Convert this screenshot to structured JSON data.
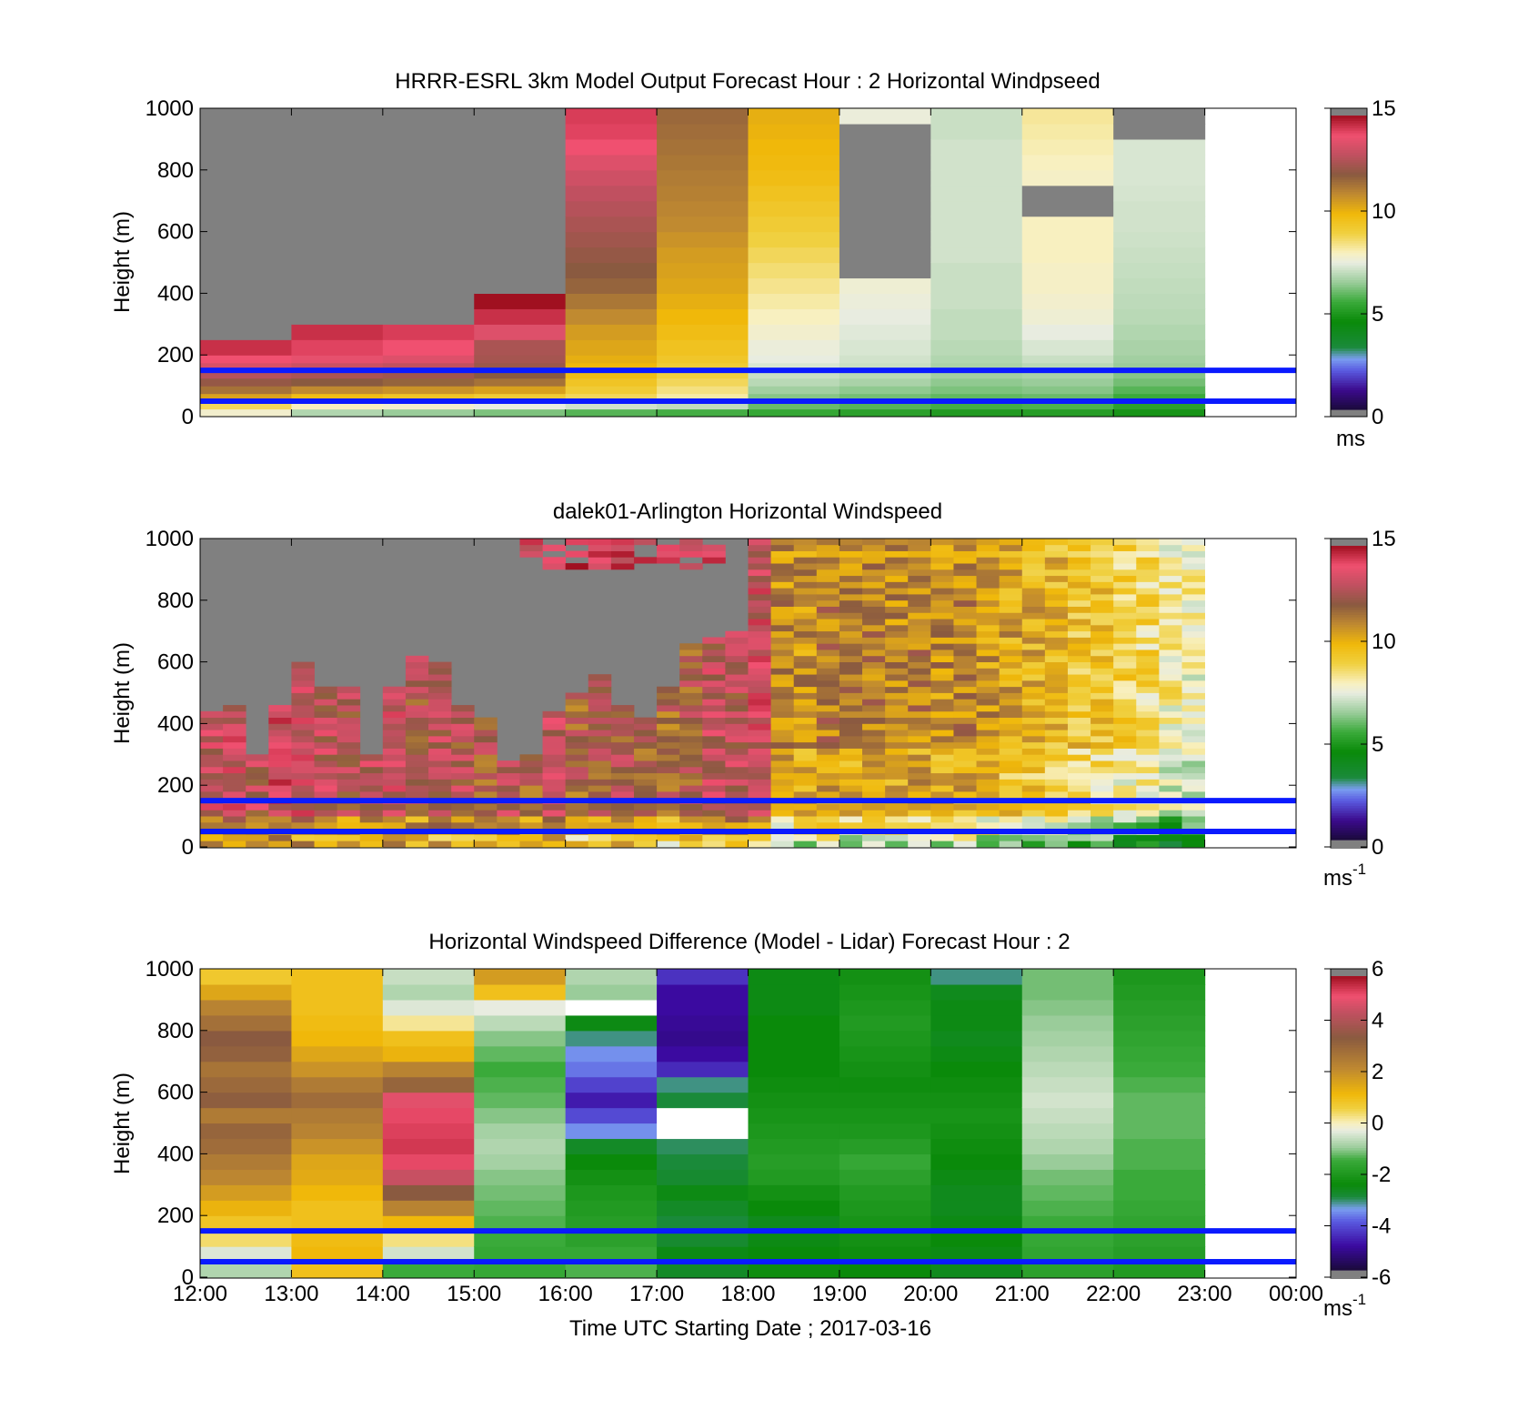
{
  "figure": {
    "xlabel": "Time UTC  Starting Date ; 2017-03-16",
    "x_ticks": [
      "12:00",
      "13:00",
      "14:00",
      "15:00",
      "16:00",
      "17:00",
      "18:00",
      "19:00",
      "20:00",
      "21:00",
      "22:00",
      "23:00",
      "00:00"
    ]
  },
  "colors": {
    "reference_lines": "#0a1aff",
    "missing": "#808080",
    "speed_cmap": [
      [
        0,
        "#1a0a3a"
      ],
      [
        1,
        "#3b0a8c"
      ],
      [
        2,
        "#5a5ae0"
      ],
      [
        2.6,
        "#7a9ef0"
      ],
      [
        3.2,
        "#1a8a3a"
      ],
      [
        4.5,
        "#0a8a0a"
      ],
      [
        5.5,
        "#3aaa3a"
      ],
      [
        6.5,
        "#9acc9a"
      ],
      [
        7.5,
        "#e8ece0"
      ],
      [
        8,
        "#f8f0c0"
      ],
      [
        9,
        "#f0d040"
      ],
      [
        10,
        "#f0b80a"
      ],
      [
        11,
        "#c08a30"
      ],
      [
        12,
        "#8a5a40"
      ],
      [
        13,
        "#c05060"
      ],
      [
        14,
        "#f05070"
      ],
      [
        15,
        "#a01020"
      ]
    ],
    "diff_cmap": [
      [
        -6,
        "#1a0a3a"
      ],
      [
        -5,
        "#3b0aa0"
      ],
      [
        -4,
        "#5a5ae0"
      ],
      [
        -3.5,
        "#7a9ef0"
      ],
      [
        -3,
        "#1a8a3a"
      ],
      [
        -2.5,
        "#0a8a0a"
      ],
      [
        -1.5,
        "#3aaa3a"
      ],
      [
        -1,
        "#9acc9a"
      ],
      [
        -0.3,
        "#e8ece0"
      ],
      [
        0,
        "#f8f0c0"
      ],
      [
        0.6,
        "#f0d040"
      ],
      [
        1.2,
        "#f0b80a"
      ],
      [
        2.2,
        "#c08a30"
      ],
      [
        3.5,
        "#8a5a40"
      ],
      [
        4.5,
        "#c05060"
      ],
      [
        5.2,
        "#f05070"
      ],
      [
        6,
        "#a01020"
      ]
    ]
  },
  "chart_data": [
    {
      "type": "heatmap",
      "title": "HRRR-ESRL 3km Model Output   Forecast Hour : 2 Horizontal Windpseed",
      "ylabel": "Height (m)",
      "y_ticks": [
        "0",
        "200",
        "400",
        "600",
        "800",
        "1000"
      ],
      "ylim": [
        0,
        1000
      ],
      "xlim": [
        12,
        24
      ],
      "colorbar": {
        "ticks": [
          "0",
          "5",
          "10",
          "15"
        ],
        "range": [
          0,
          15
        ],
        "unit_base": "ms",
        "unit_exp": ""
      },
      "reference_lines_m": [
        50,
        150
      ],
      "time_bins_h": [
        12,
        13,
        14,
        15,
        16,
        17,
        18,
        19,
        20,
        21,
        22,
        23
      ],
      "height_bins_m": [
        0,
        25,
        50,
        75,
        100,
        125,
        150,
        175,
        200,
        250,
        300,
        350,
        400,
        450,
        500,
        550,
        600,
        650,
        700,
        750,
        800,
        850,
        900,
        950,
        1000
      ],
      "values_ms": [
        [
          7.8,
          8.8,
          10.5,
          11.5,
          12.2,
          12.8,
          13.5,
          14,
          14.5,
          null,
          null,
          null,
          null,
          null,
          null,
          null,
          null,
          null,
          null,
          null,
          null,
          null,
          null,
          null
        ],
        [
          6.8,
          8,
          9.8,
          11,
          12,
          12.6,
          13.2,
          13.8,
          14.2,
          14.5,
          null,
          null,
          null,
          null,
          null,
          null,
          null,
          null,
          null,
          null,
          null,
          null,
          null,
          null
        ],
        [
          6.5,
          7.8,
          9.5,
          10.8,
          11.8,
          12.4,
          13,
          13.6,
          14,
          14.3,
          null,
          null,
          null,
          null,
          null,
          null,
          null,
          null,
          null,
          null,
          null,
          null,
          null,
          null
        ],
        [
          6.2,
          7.5,
          9.2,
          10.5,
          11.5,
          12,
          12.3,
          12.5,
          12.6,
          13.6,
          14.5,
          15,
          null,
          null,
          null,
          null,
          null,
          null,
          null,
          null,
          null,
          null,
          null,
          null
        ],
        [
          5.8,
          7.2,
          8.8,
          9.2,
          9.5,
          9.8,
          10,
          10.2,
          10.4,
          10.6,
          11,
          11.4,
          11.8,
          12,
          12.2,
          12.4,
          12.6,
          12.8,
          13,
          13.3,
          13.6,
          14,
          14.2,
          14.3
        ],
        [
          5.6,
          7,
          8.2,
          8.5,
          8.8,
          9,
          9.2,
          9.4,
          9.6,
          9.8,
          10,
          10.2,
          10.4,
          10.5,
          10.6,
          10.8,
          11,
          11.1,
          11.2,
          11.3,
          11.4,
          11.5,
          11.6,
          11.7
        ],
        [
          5.4,
          6,
          6.3,
          6.6,
          6.9,
          7.1,
          7.3,
          7.5,
          7.6,
          7.8,
          8,
          8.2,
          8.4,
          8.6,
          8.8,
          9,
          9.2,
          9.4,
          9.6,
          9.8,
          9.9,
          10,
          10.1,
          10.2
        ],
        [
          5.2,
          5.8,
          6.1,
          6.4,
          6.7,
          6.9,
          7.1,
          7.2,
          7.3,
          7.4,
          7.5,
          7.6,
          7.7,
          null,
          null,
          null,
          null,
          null,
          null,
          null,
          null,
          null,
          null,
          7.6
        ],
        [
          5,
          5.6,
          5.9,
          6.2,
          6.4,
          6.6,
          6.7,
          6.8,
          6.9,
          7,
          7,
          7.1,
          7.1,
          7.1,
          7.2,
          7.2,
          7.2,
          7.2,
          7.2,
          7.2,
          7.2,
          7.2,
          7.1,
          7.1
        ],
        [
          5.1,
          5.7,
          6,
          6.3,
          6.5,
          6.7,
          6.9,
          7.1,
          7.3,
          7.5,
          7.7,
          7.8,
          7.9,
          7.9,
          8,
          8,
          8,
          null,
          null,
          7.9,
          8,
          8.1,
          8.2,
          8.3
        ],
        [
          4.8,
          5.2,
          5.5,
          5.8,
          6.1,
          6.3,
          6.5,
          6.6,
          6.7,
          6.8,
          6.9,
          6.95,
          7,
          7.05,
          7.1,
          7.15,
          7.2,
          7.2,
          7.25,
          7.3,
          7.3,
          7.3,
          null,
          null
        ],
        [
          null,
          null,
          null,
          null,
          null,
          null,
          null,
          null,
          null,
          null,
          null,
          null,
          null,
          null,
          null,
          null,
          null,
          null,
          null,
          null,
          null,
          null,
          null,
          null
        ]
      ]
    },
    {
      "type": "heatmap",
      "title": "dalek01-Arlington  Horizontal Windspeed",
      "ylabel": "Height (m)",
      "y_ticks": [
        "0",
        "200",
        "400",
        "600",
        "800",
        "1000"
      ],
      "ylim": [
        0,
        1000
      ],
      "xlim": [
        12,
        24
      ],
      "colorbar": {
        "ticks": [
          "0",
          "5",
          "10",
          "15"
        ],
        "range": [
          0,
          15
        ],
        "unit_base": "ms",
        "unit_exp": "-1"
      },
      "reference_lines_m": [
        50,
        150
      ],
      "time_step_h": 0.25,
      "height_step_m": 20,
      "data_top_m": [
        440,
        450,
        300,
        450,
        600,
        520,
        510,
        300,
        510,
        620,
        590,
        450,
        410,
        280,
        300,
        430,
        500,
        550,
        450,
        410,
        510,
        650,
        670,
        690,
        1000,
        1000,
        1000,
        1000,
        1000,
        1000,
        1000,
        1000,
        1000,
        1000,
        1000,
        1000,
        1000,
        1000,
        1000,
        1000,
        1000,
        1000,
        1000,
        1000
      ],
      "upper_segments": [
        {
          "t_start_h": 15.5,
          "t_end_h": 18,
          "top_m": 1000,
          "bottom_m": 900
        }
      ],
      "mean_speed_ms": [
        13.2,
        13.3,
        12.8,
        13.6,
        13.4,
        13.0,
        12.6,
        12.9,
        13.2,
        12.4,
        12.9,
        12.6,
        12.2,
        12.6,
        12.1,
        12.9,
        12.0,
        12.3,
        12.4,
        12.1,
        11.9,
        12.2,
        13.0,
        12.8,
        12.6,
        10.2,
        10.1,
        10.6,
        10.3,
        10.5,
        10.2,
        10.4,
        10.1,
        10.3,
        9.9,
        9.6,
        9.3,
        9.1,
        8.8,
        8.6,
        8.2,
        7.9,
        7.4,
        7.1
      ]
    },
    {
      "type": "heatmap",
      "title": "Horizontal Windspeed Difference (Model - Lidar) Forecast Hour : 2",
      "ylabel": "Height (m)",
      "y_ticks": [
        "0",
        "200",
        "400",
        "600",
        "800",
        "1000"
      ],
      "ylim": [
        0,
        1000
      ],
      "xlim": [
        12,
        24
      ],
      "colorbar": {
        "ticks": [
          "-6",
          "-4",
          "-2",
          "0",
          "2",
          "4",
          "6"
        ],
        "range": [
          -6,
          6
        ],
        "unit_base": "ms",
        "unit_exp": "-1"
      },
      "reference_lines_m": [
        50,
        150
      ],
      "time_bins_h": [
        12,
        13,
        14,
        15,
        16,
        17,
        18,
        19,
        20,
        21,
        22,
        23
      ],
      "height_bins_m": [
        0,
        50,
        100,
        150,
        200,
        250,
        300,
        350,
        400,
        450,
        500,
        550,
        600,
        650,
        700,
        750,
        800,
        850,
        900,
        950,
        1000
      ],
      "values_ms": [
        [
          -0.8,
          -0.4,
          0.4,
          0.9,
          1.3,
          1.8,
          2.3,
          2.6,
          3.0,
          3.2,
          2.6,
          3.4,
          3.1,
          2.8,
          3.3,
          3.5,
          2.9,
          2.4,
          1.6,
          0.8
        ],
        [
          1.0,
          1.2,
          1.1,
          1.0,
          1.0,
          1.2,
          1.5,
          1.6,
          2.0,
          2.4,
          2.6,
          3.0,
          2.6,
          2.0,
          1.6,
          1.2,
          1.1,
          1.0,
          1.0,
          1.0
        ],
        [
          -1.5,
          -0.5,
          0.3,
          1.2,
          2.4,
          3.5,
          4.6,
          5.3,
          5.5,
          5.4,
          5.3,
          5.0,
          3.2,
          2.4,
          1.3,
          1.0,
          0.2,
          -0.4,
          -0.8,
          -0.6
        ],
        [
          -1.6,
          -1.6,
          -1.5,
          -1.4,
          -1.3,
          -1.2,
          -1.1,
          -0.9,
          -0.8,
          -0.9,
          -1.1,
          -1.3,
          -1.4,
          -1.5,
          -1.3,
          -1.1,
          -0.7,
          -0.3,
          1.0,
          1.8
        ],
        [
          -1.4,
          -1.6,
          -1.8,
          -1.9,
          -2.0,
          -2.1,
          -2.3,
          -2.5,
          -2.8,
          -3.6,
          -4.2,
          -4.8,
          -4.3,
          -3.8,
          -3.6,
          -3.2,
          -2.6,
          null,
          -1.0,
          -0.8
        ],
        [
          -2.8,
          -2.6,
          -2.9,
          -3.0,
          -2.8,
          -2.6,
          -2.9,
          -3.0,
          -3.1,
          null,
          null,
          -3.0,
          -3.2,
          -4.6,
          -5.0,
          -5.2,
          -5.1,
          -5.0,
          -5.0,
          -4.5
        ],
        [
          -2.4,
          -2.5,
          -2.6,
          -2.7,
          -2.5,
          -2.3,
          -2.0,
          -1.9,
          -2.0,
          -2.1,
          -2.2,
          -2.3,
          -2.4,
          -2.5,
          -2.5,
          -2.5,
          -2.5,
          -2.6,
          -2.6,
          -2.6
        ],
        [
          -2.5,
          -2.4,
          -2.3,
          -2.2,
          -2.1,
          -2.0,
          -1.8,
          -1.6,
          -1.9,
          -2.1,
          -2.2,
          -2.3,
          -2.4,
          -2.3,
          -2.2,
          -2.1,
          -2.0,
          -2.1,
          -2.2,
          -2.3
        ],
        [
          -2.7,
          -2.6,
          -2.5,
          -2.6,
          -2.7,
          -2.7,
          -2.6,
          -2.5,
          -2.4,
          -2.3,
          -2.2,
          -2.3,
          -2.4,
          -2.5,
          -2.6,
          -2.7,
          -2.6,
          -2.6,
          -2.7,
          -3.2
        ],
        [
          -1.8,
          -1.7,
          -1.6,
          -1.5,
          -1.4,
          -1.3,
          -1.2,
          -1.0,
          -0.8,
          -0.7,
          -0.6,
          -0.5,
          -0.6,
          -0.7,
          -0.8,
          -0.9,
          -1.0,
          -1.1,
          -1.2,
          -1.2
        ],
        [
          -2.0,
          -1.9,
          -1.8,
          -1.7,
          -1.6,
          -1.5,
          -1.5,
          -1.4,
          -1.4,
          -1.3,
          -1.3,
          -1.3,
          -1.4,
          -1.5,
          -1.6,
          -1.7,
          -1.8,
          -1.9,
          -2.0,
          -2.1
        ],
        [
          null,
          null,
          null,
          null,
          null,
          null,
          null,
          null,
          null,
          null,
          null,
          null,
          null,
          null,
          null,
          null,
          null,
          null,
          null,
          null
        ]
      ]
    }
  ]
}
